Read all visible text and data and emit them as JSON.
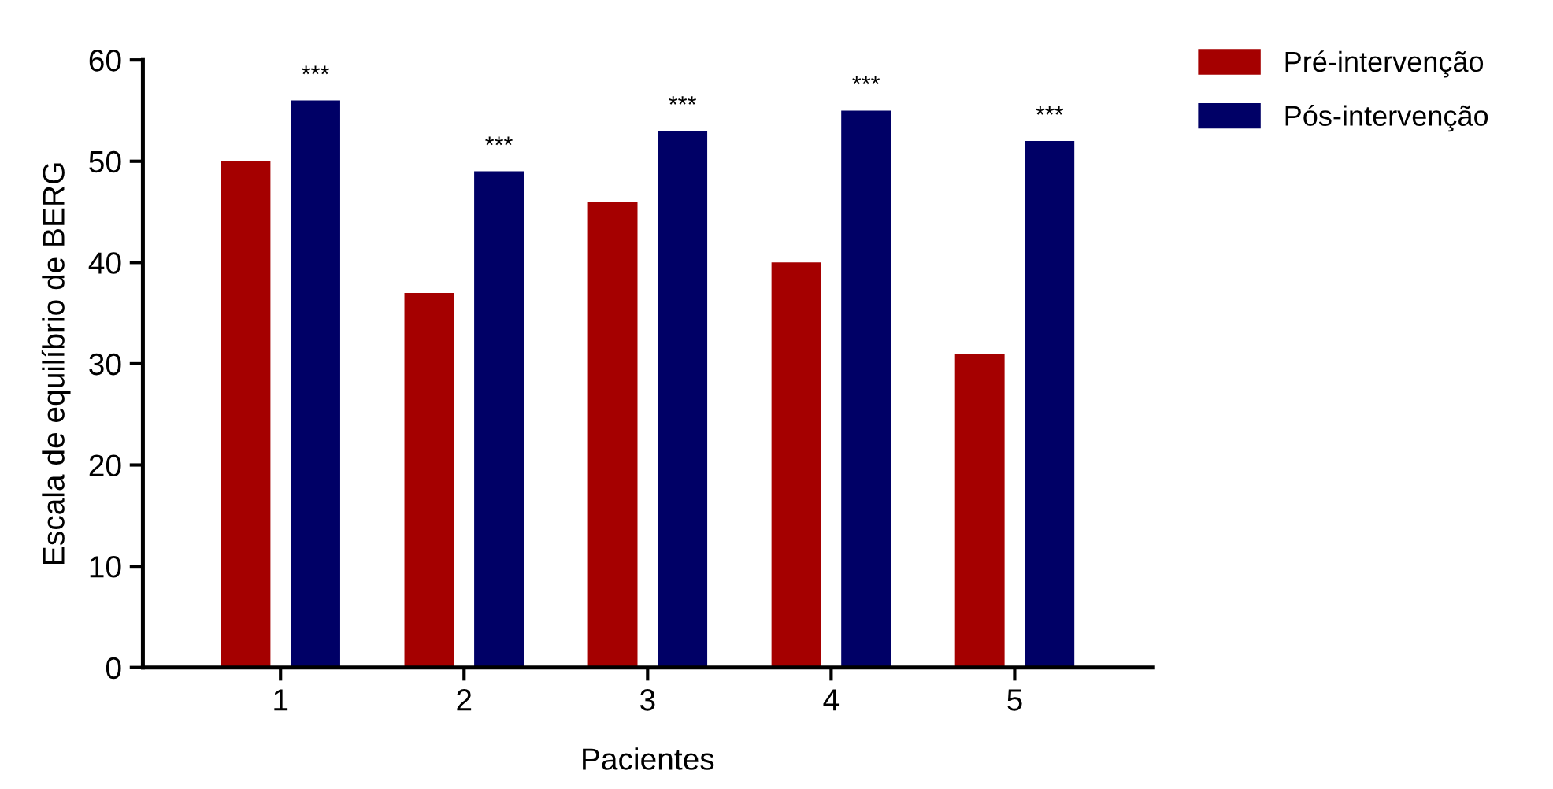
{
  "chart_data": {
    "type": "bar",
    "xlabel": "Pacientes",
    "ylabel": "Escala de equilíbrio de BERG",
    "categories": [
      "1",
      "2",
      "3",
      "4",
      "5"
    ],
    "series": [
      {
        "name": "Pré-intervenção",
        "color": "#a50000",
        "values": [
          50,
          37,
          46,
          40,
          31
        ]
      },
      {
        "name": "Pós-intervenção",
        "color": "#000066",
        "values": [
          56,
          49,
          53,
          55,
          52
        ]
      }
    ],
    "ylim": [
      0,
      60
    ],
    "yticks": [
      0,
      10,
      20,
      30,
      40,
      50,
      60
    ],
    "grid": false,
    "legend": "top right",
    "annotations": [
      "***",
      "***",
      "***",
      "***",
      "***"
    ]
  }
}
